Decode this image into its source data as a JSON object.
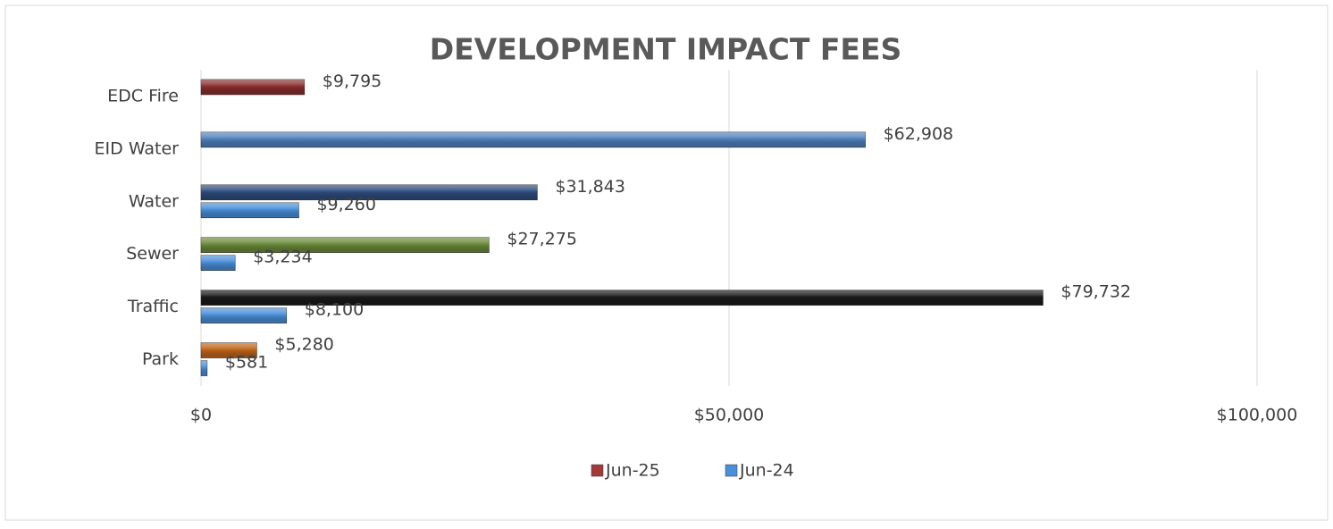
{
  "chart_data": {
    "type": "hbar",
    "title": "DEVELOPMENT IMPACT FEES",
    "categories": [
      "EDC Fire",
      "EID Water",
      "Water",
      "Sewer",
      "Traffic",
      "Park"
    ],
    "series": [
      {
        "name": "Jun-25",
        "color": "#a33a3a",
        "colors": [
          "#8b2e2e",
          "#4f81bd",
          "#2f4d7e",
          "#6b8a3a",
          "#1a1a1a",
          "#c0651c"
        ],
        "values": [
          9795,
          62908,
          31843,
          27275,
          79732,
          5280
        ],
        "value_labels": [
          "$9,795",
          "$62,908",
          "$31,843",
          "$27,275",
          "$79,732",
          "$5,280"
        ]
      },
      {
        "name": "Jun-24",
        "color": "#4a8fd9",
        "values": [
          null,
          null,
          9260,
          3234,
          8100,
          581
        ],
        "value_labels": [
          null,
          null,
          "$9,260",
          "$3,234",
          "$8,100",
          "$581"
        ]
      }
    ],
    "xlim": [
      0,
      100000
    ],
    "xticks": [
      {
        "value": 0,
        "label": "$0"
      },
      {
        "value": 50000,
        "label": "$50,000"
      },
      {
        "value": 100000,
        "label": "$100,000"
      }
    ],
    "grid": true,
    "legend": "bottom"
  }
}
